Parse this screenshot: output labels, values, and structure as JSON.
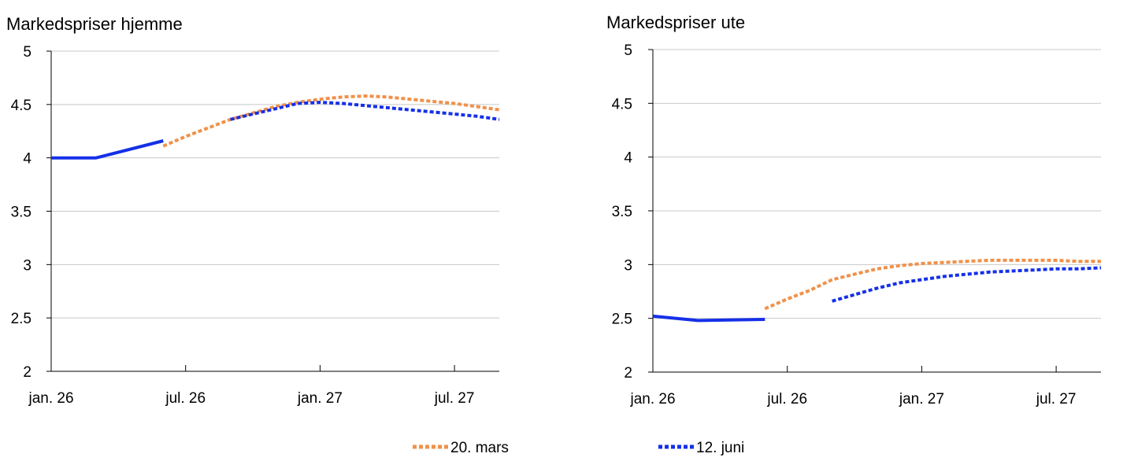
{
  "legend": [
    {
      "label": "20. mars",
      "color": "#F0914A",
      "style": "dotted"
    },
    {
      "label": "12. juni",
      "color": "#1530E8",
      "style": "dotted"
    }
  ],
  "chart_data": [
    {
      "type": "line",
      "title": "Markedspriser hjemme",
      "xlabel": "",
      "ylabel": "",
      "ylim": [
        2,
        5
      ],
      "yticks": [
        "2",
        "2.5",
        "3",
        "3.5",
        "4",
        "4.5",
        "5"
      ],
      "xticks": [
        {
          "label": "jan. 26",
          "month": 0
        },
        {
          "label": "jul. 26",
          "month": 6
        },
        {
          "label": "jan. 27",
          "month": 12
        },
        {
          "label": "jul. 27",
          "month": 18
        }
      ],
      "xlim_months": [
        0,
        20
      ],
      "grid": true,
      "series": [
        {
          "color": "#1530E8",
          "style": "solid",
          "x": [
            0,
            2,
            5
          ],
          "y": [
            4.0,
            4.0,
            4.16
          ]
        },
        {
          "name": "20. mars",
          "color": "#F0914A",
          "style": "dotted",
          "x": [
            5,
            6,
            7,
            8,
            9,
            10,
            11,
            12,
            13,
            14,
            15,
            16,
            17,
            18,
            19,
            20
          ],
          "y": [
            4.11,
            4.2,
            4.28,
            4.36,
            4.42,
            4.48,
            4.52,
            4.55,
            4.57,
            4.58,
            4.57,
            4.55,
            4.53,
            4.51,
            4.48,
            4.45
          ]
        },
        {
          "name": "12. juni",
          "color": "#1530E8",
          "style": "dotted",
          "x": [
            8,
            9,
            10,
            11,
            12,
            13,
            14,
            15,
            16,
            17,
            18,
            19,
            20
          ],
          "y": [
            4.36,
            4.41,
            4.46,
            4.51,
            4.52,
            4.51,
            4.49,
            4.47,
            4.45,
            4.43,
            4.41,
            4.39,
            4.36
          ]
        }
      ]
    },
    {
      "type": "line",
      "title": "Markedspriser ute",
      "xlabel": "",
      "ylabel": "",
      "ylim": [
        2,
        5
      ],
      "yticks": [
        "2",
        "2.5",
        "3",
        "3.5",
        "4",
        "4.5",
        "5"
      ],
      "xticks": [
        {
          "label": "jan. 26",
          "month": 0
        },
        {
          "label": "jul. 26",
          "month": 6
        },
        {
          "label": "jan. 27",
          "month": 12
        },
        {
          "label": "jul. 27",
          "month": 18
        }
      ],
      "xlim_months": [
        0,
        20
      ],
      "grid": true,
      "series": [
        {
          "color": "#1530E8",
          "style": "solid",
          "x": [
            0,
            2,
            5
          ],
          "y": [
            2.52,
            2.48,
            2.49
          ]
        },
        {
          "name": "20. mars",
          "color": "#F0914A",
          "style": "dotted",
          "x": [
            5,
            6,
            7,
            8,
            9,
            10,
            11,
            12,
            13,
            14,
            15,
            16,
            17,
            18,
            19,
            20
          ],
          "y": [
            2.59,
            2.68,
            2.76,
            2.86,
            2.91,
            2.96,
            2.99,
            3.01,
            3.02,
            3.03,
            3.04,
            3.04,
            3.04,
            3.04,
            3.03,
            3.03
          ]
        },
        {
          "name": "12. juni",
          "color": "#1530E8",
          "style": "dotted",
          "x": [
            8,
            9,
            10,
            11,
            12,
            13,
            14,
            15,
            16,
            17,
            18,
            19,
            20
          ],
          "y": [
            2.66,
            2.72,
            2.78,
            2.83,
            2.86,
            2.89,
            2.91,
            2.93,
            2.94,
            2.95,
            2.96,
            2.96,
            2.97
          ]
        }
      ]
    }
  ]
}
